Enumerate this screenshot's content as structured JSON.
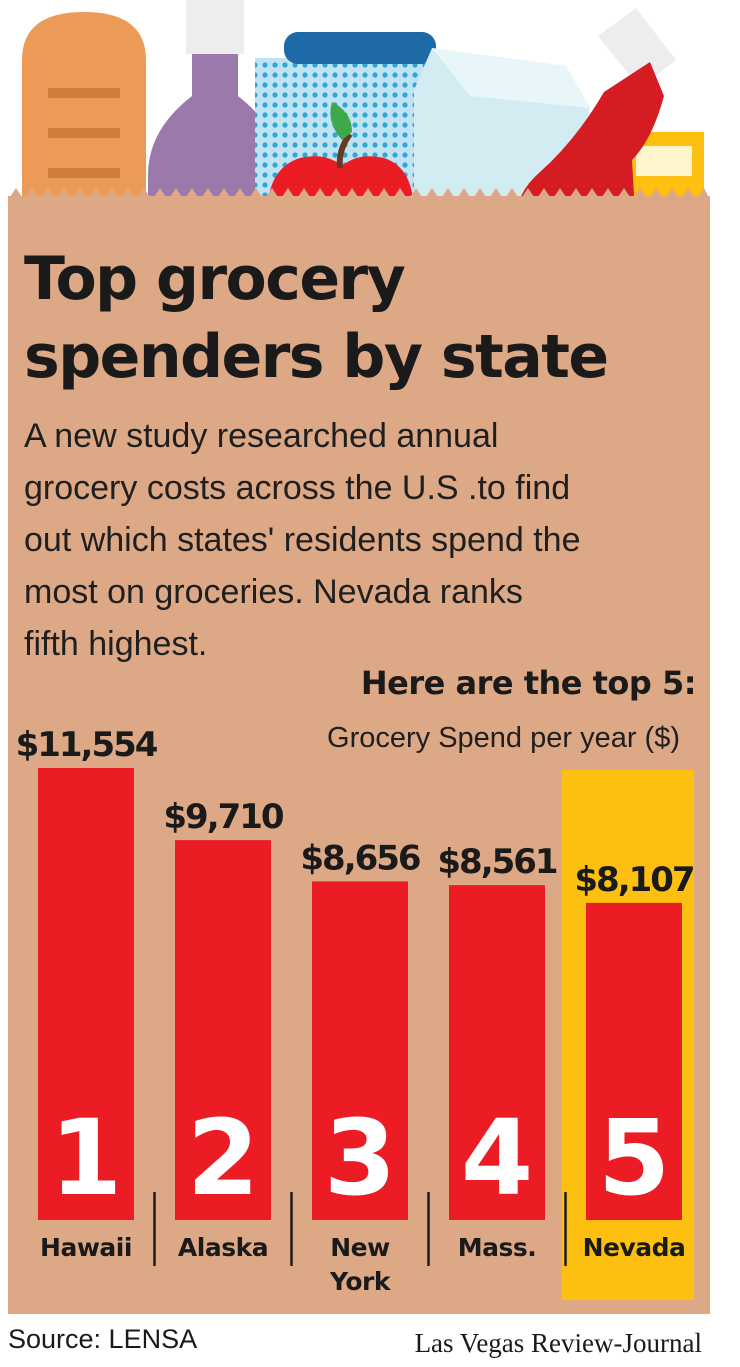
{
  "header": {
    "title_line1": "Top grocery",
    "title_line2": "spenders by state",
    "intro_line1": "A new study researched annual",
    "intro_line2": "grocery costs across the U.S .to find",
    "intro_line3": "out which states' residents spend the",
    "intro_line4": "most on groceries. Nevada ranks",
    "intro_line5": "fifth highest.",
    "subhead": "Here are the top 5:",
    "units": "Grocery Spend per year ($)"
  },
  "footer": {
    "source": "Source: LENSA",
    "credit": "Las Vegas Review-Journal"
  },
  "colors": {
    "bag": "#dca886",
    "bar": "#ec1c24",
    "highlight": "#fdc010",
    "text": "#1a1a1a"
  },
  "chart_data": {
    "type": "bar",
    "title": "Here are the top 5:",
    "ylabel": "Grocery Spend per year ($)",
    "categories": [
      "Hawaii",
      "Alaska",
      "New York",
      "Mass.",
      "Nevada"
    ],
    "category_lines": [
      [
        "Hawaii"
      ],
      [
        "Alaska"
      ],
      [
        "New",
        "York"
      ],
      [
        "Mass."
      ],
      [
        "Nevada"
      ]
    ],
    "ranks": [
      "1",
      "2",
      "3",
      "4",
      "5"
    ],
    "values": [
      11554,
      9710,
      8656,
      8561,
      8107
    ],
    "value_labels": [
      "$11,554",
      "$9,710",
      "$8,656",
      "$8,561",
      "$8,107"
    ],
    "highlight_index": 4,
    "grid": false
  }
}
